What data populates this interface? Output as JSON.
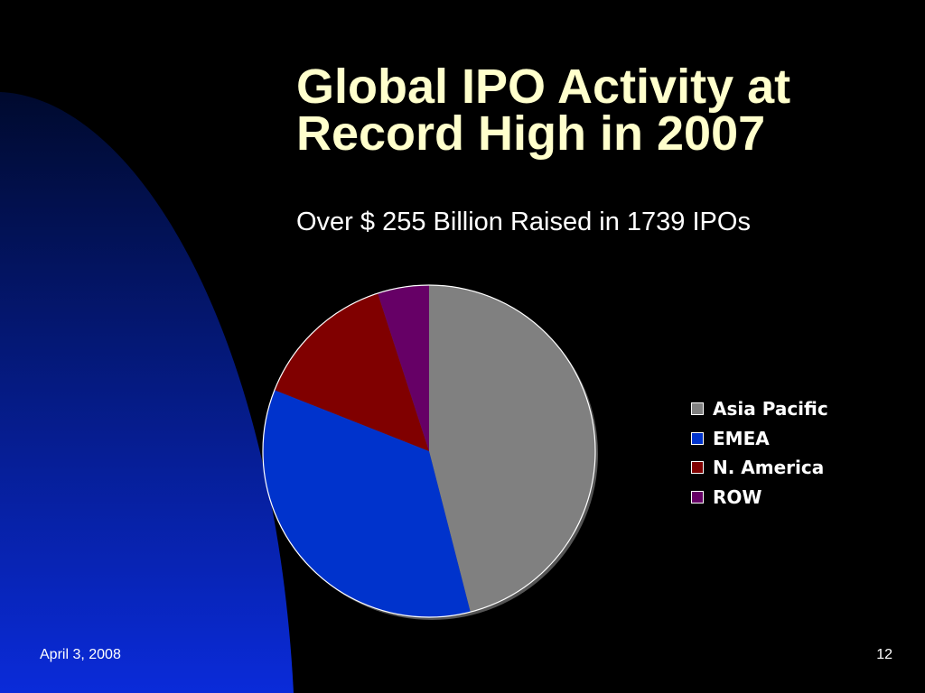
{
  "slide": {
    "title_line1": "Global IPO Activity at",
    "title_line2": "Record High in 2007",
    "subtitle": "Over $ 255 Billion Raised in 1739 IPOs",
    "date": "April 3, 2008",
    "page_number": "12"
  },
  "colors": {
    "title": "#FFFFCC",
    "background": "#000000",
    "decor_top": "#000A2E",
    "decor_bottom": "#0A2BD9"
  },
  "chart_data": {
    "type": "pie",
    "title": "",
    "legend_position": "right",
    "start_angle": "12 o'clock, clockwise",
    "categories": [
      "Asia Pacific",
      "EMEA",
      "N. America",
      "ROW"
    ],
    "values": [
      46,
      35,
      14,
      5
    ],
    "value_unit": "percent of total (estimated)",
    "colors": [
      "#808080",
      "#0033CC",
      "#800000",
      "#660066"
    ]
  }
}
